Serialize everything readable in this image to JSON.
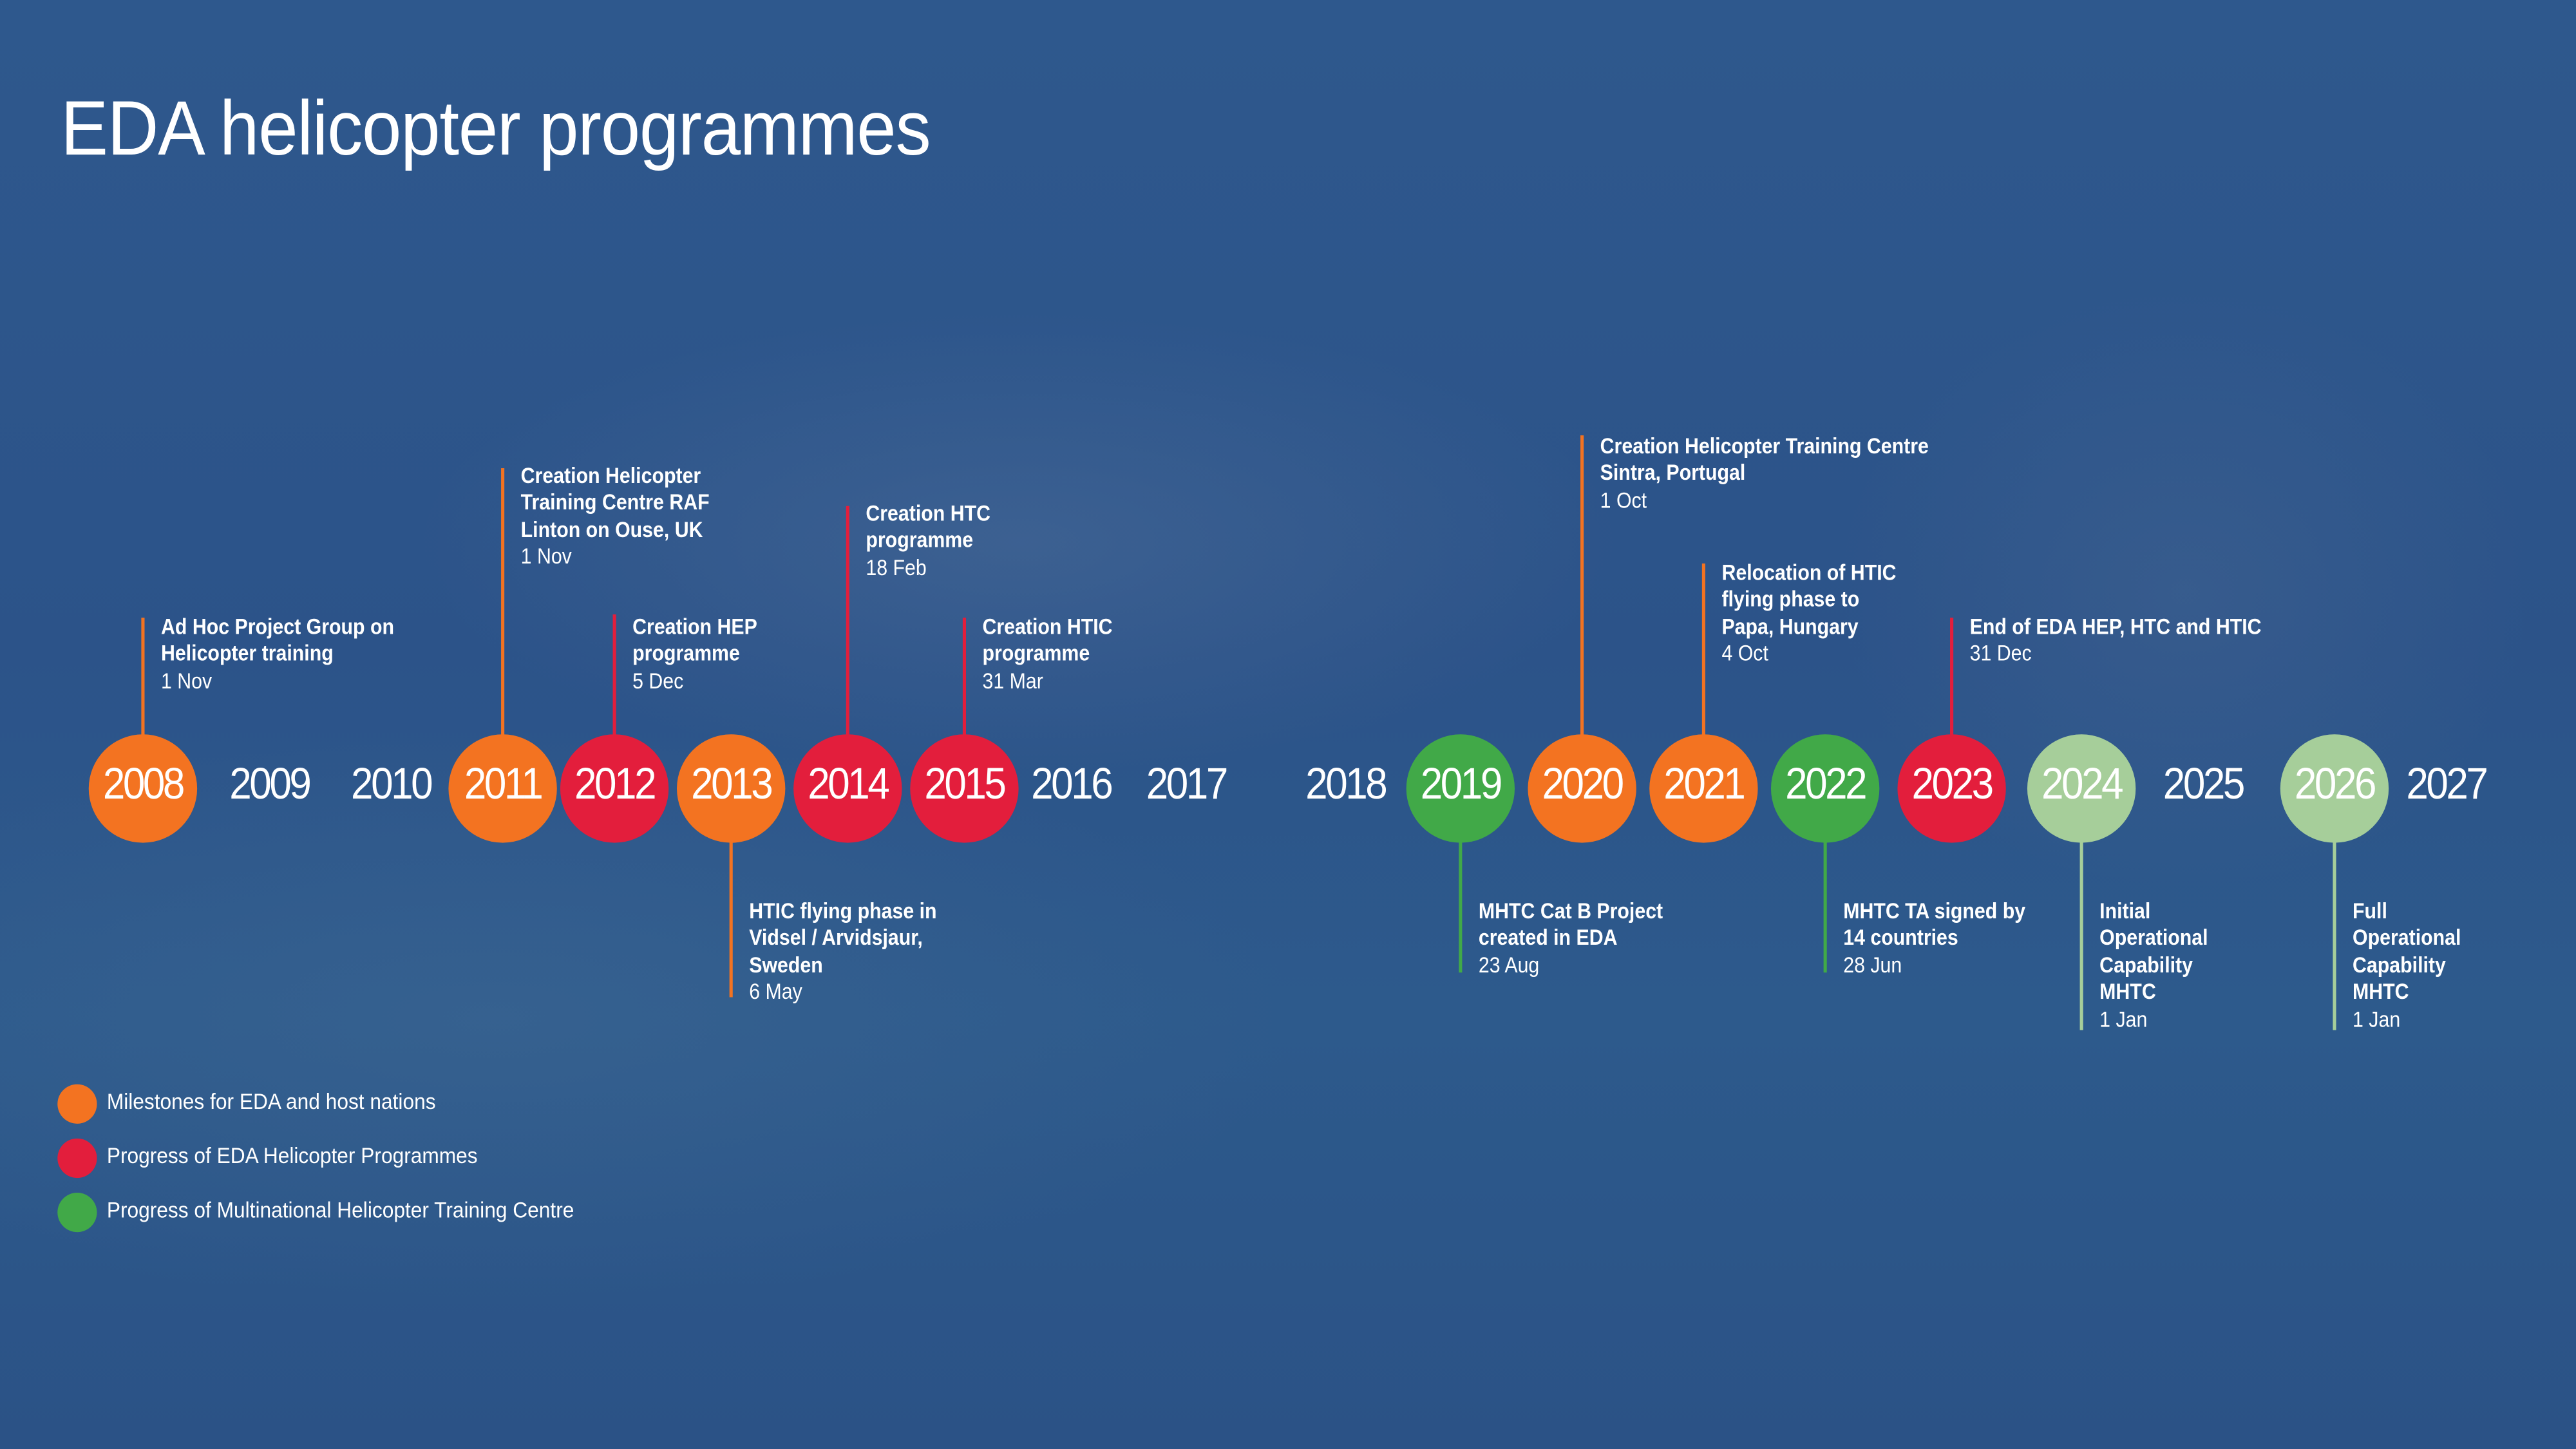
{
  "title": "EDA helicopter programmes",
  "colors": {
    "orange": "#f37321",
    "red": "#e31e3c",
    "green": "#41a948",
    "lightgreen": "#a6ce9a",
    "background": "#2c5388"
  },
  "years": [
    {
      "year": "2008",
      "cat": "orange"
    },
    {
      "year": "2009",
      "cat": null
    },
    {
      "year": "2010",
      "cat": null
    },
    {
      "year": "2011",
      "cat": "orange"
    },
    {
      "year": "2012",
      "cat": "red"
    },
    {
      "year": "2013",
      "cat": "orange"
    },
    {
      "year": "2014",
      "cat": "red"
    },
    {
      "year": "2015",
      "cat": "red"
    },
    {
      "year": "2016",
      "cat": null
    },
    {
      "year": "2017",
      "cat": null
    },
    {
      "year": "2018",
      "cat": null
    },
    {
      "year": "2019",
      "cat": "green"
    },
    {
      "year": "2020",
      "cat": "orange"
    },
    {
      "year": "2021",
      "cat": "orange"
    },
    {
      "year": "2022",
      "cat": "green"
    },
    {
      "year": "2023",
      "cat": "red"
    },
    {
      "year": "2024",
      "cat": "lightgreen"
    },
    {
      "year": "2025",
      "cat": null
    },
    {
      "year": "2026",
      "cat": "lightgreen"
    },
    {
      "year": "2027",
      "cat": null
    }
  ],
  "events": [
    {
      "year": "2008",
      "side": "up",
      "lines": [
        "Ad Hoc Project Group on",
        "Helicopter training"
      ],
      "date": "1 Nov"
    },
    {
      "year": "2011",
      "side": "up",
      "lines": [
        "Creation Helicopter",
        "Training Centre RAF",
        "Linton on Ouse, UK"
      ],
      "date": "1 Nov"
    },
    {
      "year": "2012",
      "side": "up",
      "lines": [
        "Creation HEP",
        "programme"
      ],
      "date": "5 Dec"
    },
    {
      "year": "2013",
      "side": "down",
      "lines": [
        "HTIC flying phase in",
        "Vidsel / Arvidsjaur,",
        "Sweden"
      ],
      "date": "6 May"
    },
    {
      "year": "2014",
      "side": "up",
      "lines": [
        "Creation HTC",
        "programme"
      ],
      "date": "18 Feb"
    },
    {
      "year": "2015",
      "side": "up",
      "lines": [
        "Creation HTIC",
        "programme"
      ],
      "date": "31 Mar"
    },
    {
      "year": "2019",
      "side": "down",
      "lines": [
        "MHTC Cat B Project",
        "created in EDA"
      ],
      "date": "23 Aug"
    },
    {
      "year": "2020",
      "side": "up",
      "lines": [
        "Creation Helicopter Training Centre",
        "Sintra, Portugal"
      ],
      "date": "1 Oct"
    },
    {
      "year": "2021",
      "side": "up",
      "lines": [
        "Relocation of HTIC",
        "flying phase to",
        "Papa, Hungary"
      ],
      "date": "4 Oct"
    },
    {
      "year": "2022",
      "side": "down",
      "lines": [
        "MHTC TA signed by",
        "14 countries"
      ],
      "date": "28 Jun"
    },
    {
      "year": "2023",
      "side": "up",
      "lines": [
        "End of EDA HEP, HTC and HTIC"
      ],
      "date": "31 Dec"
    },
    {
      "year": "2024",
      "side": "down",
      "lines": [
        "Initial",
        "Operational",
        "Capability",
        "MHTC"
      ],
      "date": "1 Jan"
    },
    {
      "year": "2026",
      "side": "down",
      "lines": [
        "Full",
        "Operational",
        "Capability",
        "MHTC"
      ],
      "date": "1 Jan"
    }
  ],
  "legend": [
    {
      "label": "Milestones for EDA and host nations",
      "cat": "orange"
    },
    {
      "label": "Progress of EDA Helicopter Programmes",
      "cat": "red"
    },
    {
      "label": "Progress of Multinational Helicopter Training Centre",
      "cat": "green"
    }
  ]
}
